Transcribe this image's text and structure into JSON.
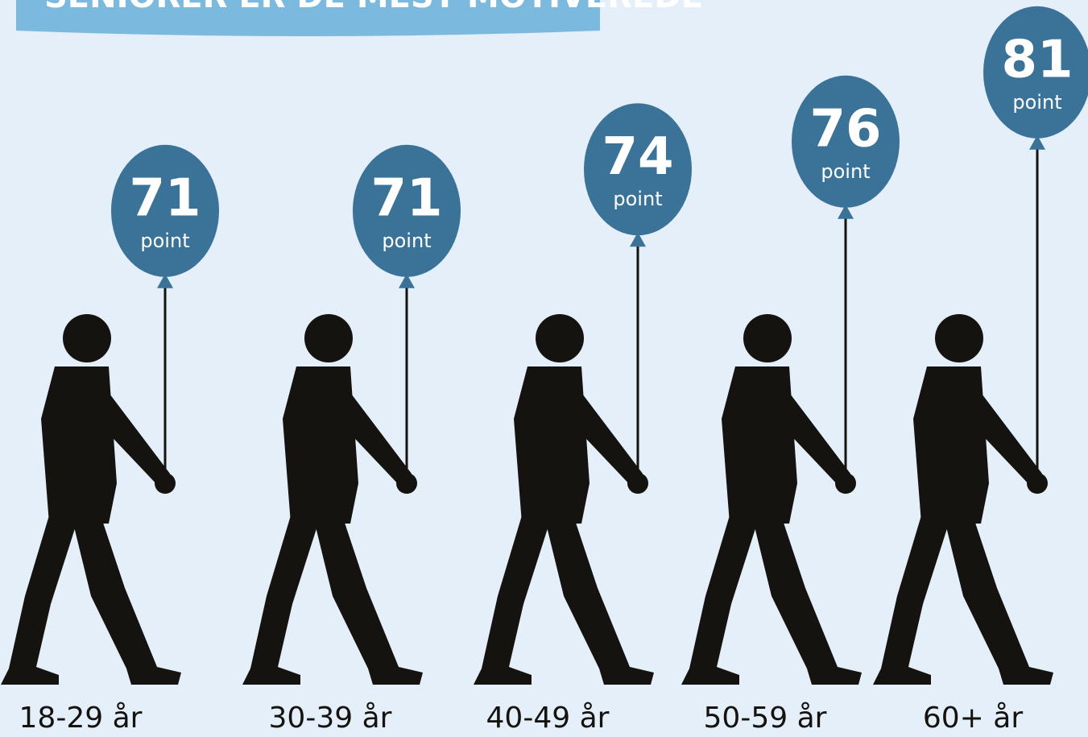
{
  "chart_data": {
    "type": "balloon",
    "title": "SENIORER ER DE MEST MOTIVEREDE",
    "categories": [
      "18-29 år",
      "30-39 år",
      "40-49 år",
      "50-59 år",
      "60+ år"
    ],
    "values": [
      71,
      71,
      74,
      76,
      81
    ],
    "unit": "point",
    "color": "#3b7398"
  }
}
